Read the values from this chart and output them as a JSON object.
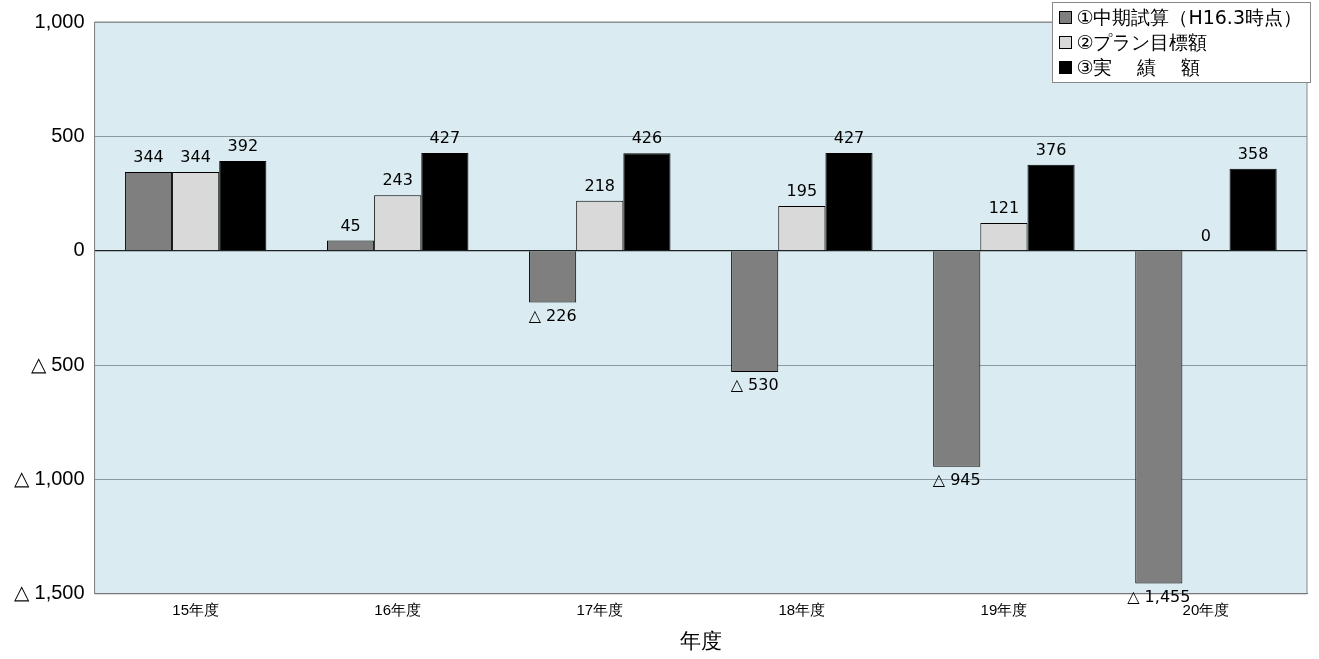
{
  "chart_data": {
    "type": "bar",
    "xlabel": "年度",
    "categories": [
      "15年度",
      "16年度",
      "17年度",
      "18年度",
      "19年度",
      "20年度"
    ],
    "series": [
      {
        "name": "①中期試算（H16.3時点）",
        "color": "#7f7f7f",
        "values": [
          344,
          45,
          -226,
          -530,
          -945,
          -1455
        ],
        "value_labels": [
          "344",
          "45",
          null,
          null,
          null,
          null
        ]
      },
      {
        "name": "②プラン目標額",
        "color": "#d9d9d9",
        "values": [
          344,
          243,
          218,
          195,
          121,
          0
        ],
        "value_labels": [
          "344",
          "243",
          "218",
          "195",
          "121",
          "0"
        ]
      },
      {
        "name": "③実　 績 　額",
        "color": "#000000",
        "values": [
          392,
          427,
          426,
          427,
          376,
          358
        ],
        "value_labels": [
          "392",
          "427",
          "426",
          "427",
          "376",
          "358"
        ]
      }
    ],
    "ylim": [
      -1500,
      1000
    ],
    "yticks": [
      {
        "value": -1500,
        "label": "△ 1,500"
      },
      {
        "value": -1000,
        "label": "△ 1,000"
      },
      {
        "value": -500,
        "label": "△ 500"
      },
      0,
      500,
      {
        "value": 1000,
        "label": "1,000"
      }
    ],
    "grid": "y",
    "legend": "top right",
    "annotations": [
      "△ 226",
      "△ 530",
      "△ 945",
      "△ 1,455"
    ]
  }
}
